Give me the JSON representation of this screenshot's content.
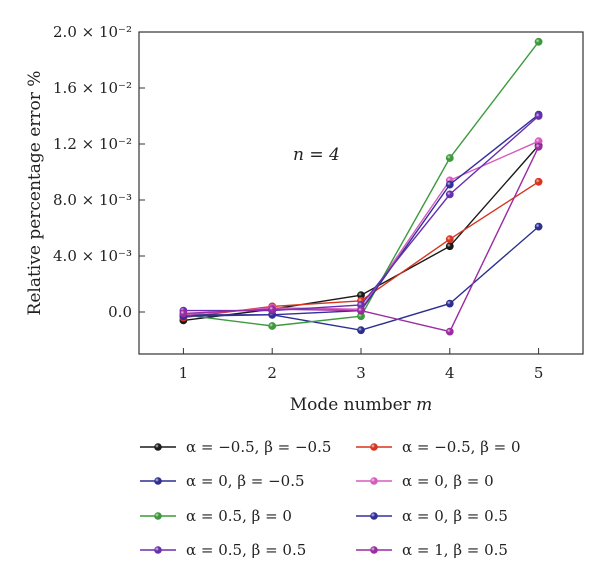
{
  "chart_data": {
    "type": "line",
    "xlabel": "Mode number m",
    "ylabel": "Relative percentage error %",
    "annotation": "n = 4",
    "x": [
      1,
      2,
      3,
      4,
      5
    ],
    "xlim": [
      0.5,
      5.5
    ],
    "ylim": [
      -0.003,
      0.02
    ],
    "xticks": [
      "1",
      "2",
      "3",
      "4",
      "5"
    ],
    "yticks": [
      {
        "value": 0.0,
        "label": "0.0"
      },
      {
        "value": 0.004,
        "label": "4.0 × 10⁻³"
      },
      {
        "value": 0.008,
        "label": "8.0 × 10⁻³"
      },
      {
        "value": 0.012,
        "label": "1.2 × 10⁻²"
      },
      {
        "value": 0.016,
        "label": "1.6 × 10⁻²"
      },
      {
        "value": 0.02,
        "label": "2.0 × 10⁻²"
      }
    ],
    "grid": false,
    "legend_placement": "bottom",
    "series": [
      {
        "name": "α = −0.5, β = −0.5",
        "color": "#1a1a1a",
        "values": [
          -0.0006,
          0.0002,
          0.0012,
          0.0047,
          0.0119
        ]
      },
      {
        "name": "α = −0.5, β = 0",
        "color": "#d8341e",
        "values": [
          -0.0004,
          0.0004,
          0.0008,
          0.0052,
          0.0093
        ]
      },
      {
        "name": "α = 0, β = −0.5",
        "color": "#2c2f8f",
        "values": [
          -0.0002,
          -0.0002,
          -0.0013,
          0.0006,
          0.0061
        ]
      },
      {
        "name": "α = 0, β = 0",
        "color": "#d65bc0",
        "values": [
          -0.0002,
          0.0003,
          0.0002,
          0.0094,
          0.0122
        ]
      },
      {
        "name": "α = 0.5, β = 0",
        "color": "#3c9a3c",
        "values": [
          -0.0002,
          -0.001,
          -0.0003,
          0.011,
          0.0193
        ]
      },
      {
        "name": "α = 0, β = 0.5",
        "color": "#33309c",
        "values": [
          -0.0003,
          -0.0002,
          0.0001,
          0.0091,
          0.0141
        ]
      },
      {
        "name": "α = 0.5, β = 0.5",
        "color": "#6a2fb0",
        "values": [
          0.0001,
          0.0001,
          0.0005,
          0.0084,
          0.014
        ]
      },
      {
        "name": "α = 1, β = 0.5",
        "color": "#9a2ba0",
        "values": [
          -0.0001,
          0.0002,
          0.0001,
          -0.0014,
          0.0118
        ]
      }
    ]
  }
}
